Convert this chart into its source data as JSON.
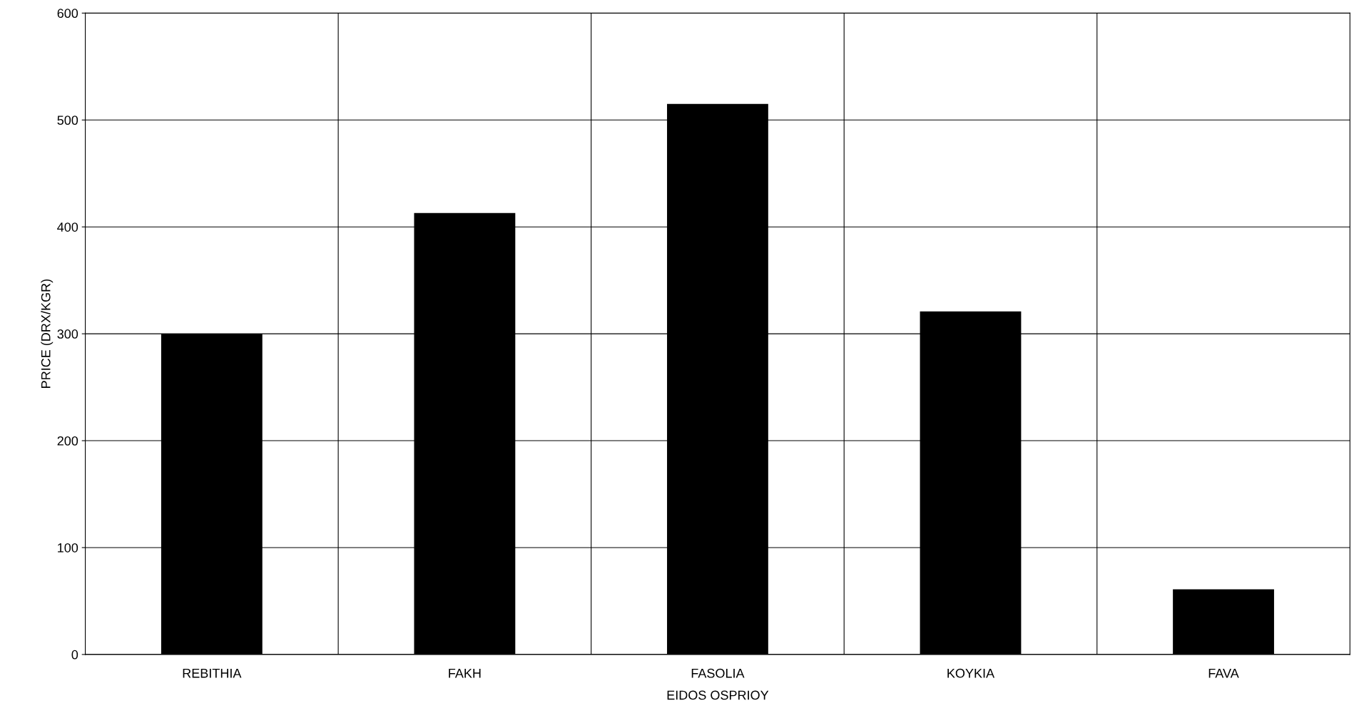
{
  "chart_data": {
    "type": "bar",
    "xlabel": "EIDOS OSPRIOY",
    "ylabel": "PRICE (DRX/KGR)",
    "categories": [
      "REBITHIA",
      "FAKH",
      "FASOLIA",
      "KOYKIA",
      "FAVA"
    ],
    "series": [
      {
        "color": "#000000",
        "values": [
          300,
          413,
          515,
          321,
          61
        ]
      }
    ],
    "ylim": [
      0,
      600
    ],
    "yticks": [
      0,
      100,
      200,
      300,
      400,
      500,
      600
    ],
    "grid": true
  }
}
